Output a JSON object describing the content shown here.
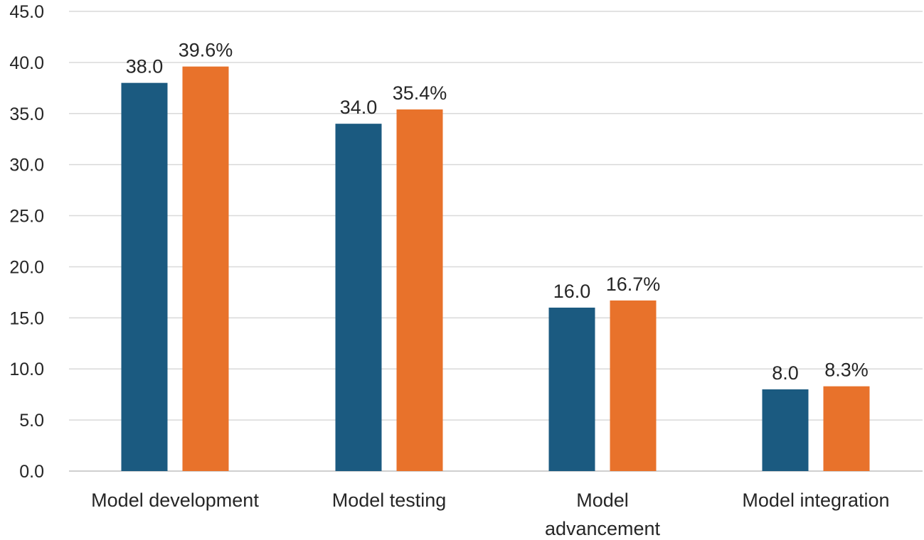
{
  "chart_data": {
    "type": "bar",
    "title": "",
    "xlabel": "",
    "ylabel": "",
    "ylim": [
      0,
      45
    ],
    "ytick_step": 5,
    "ytick_labels": [
      "0.0",
      "5.0",
      "10.0",
      "15.0",
      "20.0",
      "25.0",
      "30.0",
      "35.0",
      "40.0",
      "45.0"
    ],
    "grid": true,
    "legend": "none",
    "categories": [
      [
        "Model development"
      ],
      [
        "Model testing"
      ],
      [
        "Model",
        "advancement"
      ],
      [
        "Model integration"
      ]
    ],
    "series": [
      {
        "color": "#1b5a80",
        "values": [
          38.0,
          34.0,
          16.0,
          8.0
        ],
        "labels": [
          "38.0",
          "34.0",
          "16.0",
          "8.0"
        ]
      },
      {
        "color": "#e8722b",
        "values": [
          39.6,
          35.4,
          16.7,
          8.3
        ],
        "labels": [
          "39.6%",
          "35.4%",
          "16.7%",
          "8.3%"
        ]
      }
    ]
  }
}
